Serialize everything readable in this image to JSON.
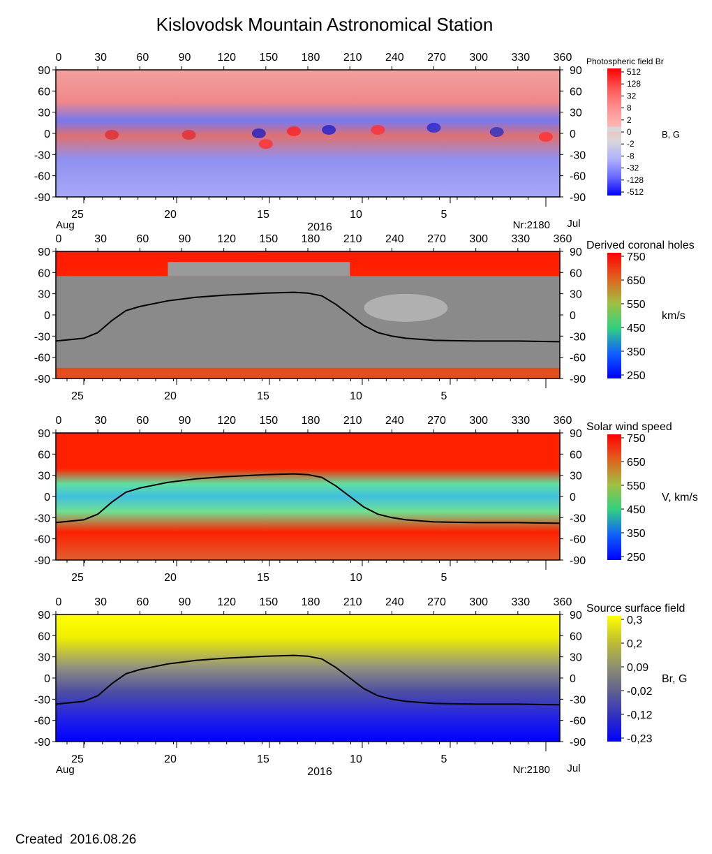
{
  "header": {
    "title": "Kislovodsk Mountain Astronomical Station"
  },
  "footer": {
    "created_label": "Created",
    "created_date": "2016.08.26"
  },
  "chart_data": [
    {
      "type": "heatmap",
      "title": "Photospheric field Br",
      "colorbar_label": "B, G",
      "colorbar_ticks": [
        "512",
        "128",
        "32",
        "8",
        "2",
        "0",
        "-2",
        "-8",
        "-32",
        "-128",
        "-512"
      ],
      "colors": [
        "#ff0000",
        "#ff5050",
        "#ff8888",
        "#ffb0b0",
        "#d8d8d8",
        "#b0b0ff",
        "#6868ff",
        "#0000ff"
      ],
      "x_range": [
        0,
        360
      ],
      "x_ticks": [
        0,
        30,
        60,
        90,
        120,
        150,
        180,
        210,
        240,
        270,
        300,
        330,
        360
      ],
      "y_range": [
        -90,
        90
      ],
      "y_ticks": [
        90,
        60,
        30,
        0,
        -30,
        -60,
        -90
      ],
      "date_ticks": [
        "25",
        "20",
        "15",
        "10",
        "5"
      ],
      "date_left": "Aug",
      "date_year": "2016",
      "date_right": "Jul",
      "rotation_label": "Nr:2180"
    },
    {
      "type": "heatmap",
      "title": "Derived coronal holes",
      "colorbar_label": "km/s",
      "colorbar_ticks": [
        "750",
        "650",
        "550",
        "450",
        "350",
        "250"
      ],
      "colors": [
        "#ff0000",
        "#e06020",
        "#a0c040",
        "#30d080",
        "#1060ff",
        "#0000ff"
      ],
      "x_range": [
        0,
        360
      ],
      "x_ticks": [
        0,
        30,
        60,
        90,
        120,
        150,
        180,
        210,
        240,
        270,
        300,
        330,
        360
      ],
      "y_range": [
        -90,
        90
      ],
      "y_ticks": [
        90,
        60,
        30,
        0,
        -30,
        -60,
        -90
      ],
      "date_ticks": [
        "25",
        "20",
        "15",
        "10",
        "5"
      ],
      "neutral_line": {
        "x": [
          0,
          20,
          30,
          40,
          50,
          60,
          80,
          100,
          120,
          150,
          170,
          180,
          190,
          200,
          210,
          220,
          230,
          240,
          250,
          270,
          300,
          330,
          360
        ],
        "y": [
          -37,
          -33,
          -25,
          -8,
          6,
          12,
          20,
          25,
          28,
          31,
          32,
          31,
          27,
          15,
          0,
          -15,
          -25,
          -30,
          -33,
          -36,
          -37,
          -37,
          -38
        ]
      }
    },
    {
      "type": "heatmap",
      "title": "Solar wind speed",
      "colorbar_label": "V, km/s",
      "colorbar_ticks": [
        "750",
        "650",
        "550",
        "450",
        "350",
        "250"
      ],
      "colors": [
        "#ff0000",
        "#e06020",
        "#a0c040",
        "#30d080",
        "#1060ff",
        "#0000ff"
      ],
      "x_range": [
        0,
        360
      ],
      "x_ticks": [
        0,
        30,
        60,
        90,
        120,
        150,
        180,
        210,
        240,
        270,
        300,
        330,
        360
      ],
      "y_range": [
        -90,
        90
      ],
      "y_ticks": [
        90,
        60,
        30,
        0,
        -30,
        -60,
        -90
      ],
      "date_ticks": [
        "25",
        "20",
        "15",
        "10",
        "5"
      ],
      "neutral_line": {
        "x": [
          0,
          20,
          30,
          40,
          50,
          60,
          80,
          100,
          120,
          150,
          170,
          180,
          190,
          200,
          210,
          220,
          230,
          240,
          250,
          270,
          300,
          330,
          360
        ],
        "y": [
          -37,
          -33,
          -25,
          -8,
          6,
          12,
          20,
          25,
          28,
          31,
          32,
          31,
          27,
          15,
          0,
          -15,
          -25,
          -30,
          -33,
          -36,
          -37,
          -37,
          -38
        ]
      }
    },
    {
      "type": "heatmap",
      "title": "Source surface field",
      "colorbar_label": "Br, G",
      "colorbar_ticks": [
        "0,3",
        "0,2",
        "0,09",
        "-0,02",
        "-0,12",
        "-0,23"
      ],
      "colors": [
        "#ffff00",
        "#c0c030",
        "#909070",
        "#606090",
        "#3030c0",
        "#0000ff"
      ],
      "x_range": [
        0,
        360
      ],
      "x_ticks": [
        0,
        30,
        60,
        90,
        120,
        150,
        180,
        210,
        240,
        270,
        300,
        330,
        360
      ],
      "y_range": [
        -90,
        90
      ],
      "y_ticks": [
        90,
        60,
        30,
        0,
        -30,
        -60,
        -90
      ],
      "date_ticks": [
        "25",
        "20",
        "15",
        "10",
        "5"
      ],
      "date_left": "Aug",
      "date_year": "2016",
      "date_right": "Jul",
      "rotation_label": "Nr:2180",
      "neutral_line": {
        "x": [
          0,
          20,
          30,
          40,
          50,
          60,
          80,
          100,
          120,
          150,
          170,
          180,
          190,
          200,
          210,
          220,
          230,
          240,
          250,
          270,
          300,
          330,
          360
        ],
        "y": [
          -37,
          -33,
          -25,
          -8,
          6,
          12,
          20,
          25,
          28,
          31,
          32,
          31,
          27,
          15,
          0,
          -15,
          -25,
          -30,
          -33,
          -36,
          -37,
          -37,
          -38
        ]
      }
    }
  ]
}
